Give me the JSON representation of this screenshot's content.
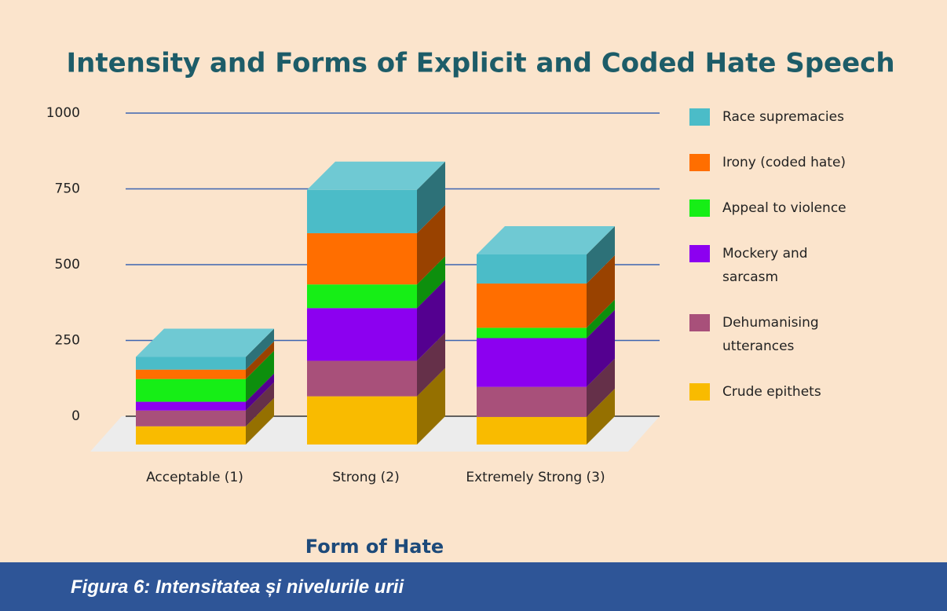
{
  "chart_data": {
    "type": "bar3d_stacked",
    "title": "Intensity and Forms of Explicit and Coded Hate Speech",
    "x_label": "Form of Hate",
    "categories": [
      "Acceptable (1)",
      "Strong (2)",
      "Extremely Strong (3)"
    ],
    "series": [
      {
        "name": "Crude epithets",
        "color": "#f9bb00",
        "values": [
          60,
          159,
          91
        ]
      },
      {
        "name": "Dehumanising utterances",
        "color": "#a8507a",
        "values": [
          52,
          117,
          99
        ]
      },
      {
        "name": "Mockery and sarcasm",
        "color": "#8c00f0",
        "values": [
          29,
          174,
          161
        ]
      },
      {
        "name": "Appeal to violence",
        "color": "#16ee16",
        "values": [
          75,
          78,
          34
        ]
      },
      {
        "name": "Irony (coded hate)",
        "color": "#ff6e00",
        "values": [
          31,
          169,
          146
        ]
      },
      {
        "name": "Race supremacies",
        "color": "#4bbcc8",
        "values": [
          42,
          143,
          96
        ]
      }
    ],
    "ylim": [
      0,
      1000
    ],
    "yticks": [
      0,
      250,
      500,
      750,
      1000
    ],
    "grid": true
  },
  "caption": "Figura 6: Intensitatea și nivelurile urii"
}
